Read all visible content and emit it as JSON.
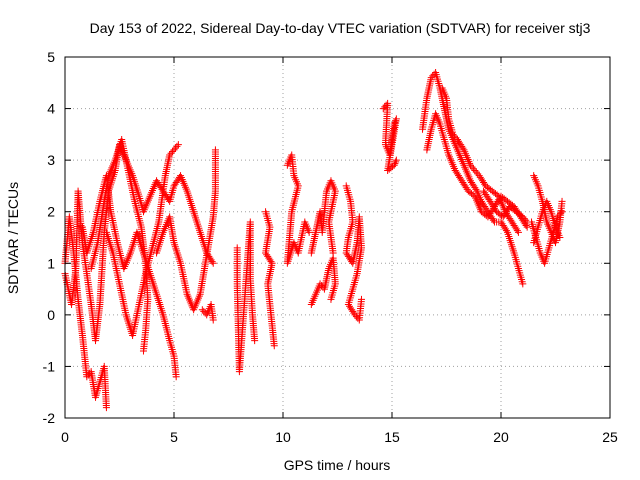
{
  "chart_data": {
    "type": "scatter",
    "title": "Day 153 of 2022, Sidereal Day-to-day VTEC variation (SDTVAR) for receiver stj3",
    "xlabel": "GPS time / hours",
    "ylabel": "SDTVAR / TECUs",
    "xlim": [
      0,
      25
    ],
    "ylim": [
      -2,
      5
    ],
    "xticks": [
      "0",
      "5",
      "10",
      "15",
      "20",
      "25"
    ],
    "yticks": [
      "-2",
      "-1",
      "0",
      "1",
      "2",
      "3",
      "4",
      "5"
    ],
    "grid": true,
    "marker": "+",
    "series": [
      {
        "name": "SDTVAR",
        "color": "#ff0000",
        "tracks": [
          [
            [
              0.0,
              1.0
            ],
            [
              0.2,
              1.9
            ],
            [
              0.4,
              1.2
            ],
            [
              0.6,
              0.3
            ],
            [
              0.8,
              -0.4
            ],
            [
              1.0,
              -1.2
            ],
            [
              1.2,
              -1.1
            ],
            [
              1.4,
              -1.6
            ],
            [
              1.6,
              -1.3
            ],
            [
              1.8,
              -1.0
            ],
            [
              1.9,
              -1.8
            ]
          ],
          [
            [
              0.0,
              0.8
            ],
            [
              0.3,
              0.2
            ],
            [
              0.5,
              0.9
            ],
            [
              0.6,
              2.4
            ],
            [
              0.8,
              1.4
            ],
            [
              1.0,
              0.8
            ],
            [
              1.2,
              0.2
            ],
            [
              1.4,
              -0.5
            ],
            [
              1.6,
              0.2
            ],
            [
              1.8,
              1.6
            ],
            [
              2.0,
              2.4
            ],
            [
              2.3,
              2.8
            ],
            [
              2.5,
              3.3
            ],
            [
              2.8,
              3.0
            ],
            [
              3.1,
              2.7
            ],
            [
              3.4,
              2.3
            ],
            [
              3.6,
              2.0
            ],
            [
              3.9,
              2.3
            ],
            [
              4.2,
              2.6
            ],
            [
              4.5,
              2.4
            ],
            [
              4.8,
              2.2
            ],
            [
              5.0,
              2.5
            ],
            [
              5.3,
              2.7
            ],
            [
              5.6,
              2.4
            ],
            [
              5.9,
              2.0
            ],
            [
              6.2,
              1.6
            ],
            [
              6.5,
              1.2
            ],
            [
              6.8,
              1.0
            ]
          ],
          [
            [
              0.8,
              1.7
            ],
            [
              1.0,
              1.2
            ],
            [
              1.3,
              1.6
            ],
            [
              1.6,
              2.2
            ],
            [
              1.9,
              2.7
            ],
            [
              2.1,
              2.0
            ],
            [
              2.4,
              1.4
            ],
            [
              2.7,
              0.9
            ],
            [
              3.0,
              1.2
            ],
            [
              3.3,
              1.6
            ],
            [
              3.6,
              1.2
            ],
            [
              3.9,
              0.8
            ],
            [
              4.2,
              0.4
            ],
            [
              4.5,
              0.0
            ],
            [
              4.8,
              -0.5
            ],
            [
              5.0,
              -0.8
            ],
            [
              5.1,
              -1.2
            ]
          ],
          [
            [
              1.2,
              0.9
            ],
            [
              1.5,
              1.4
            ],
            [
              1.8,
              2.2
            ],
            [
              2.0,
              2.7
            ],
            [
              2.3,
              3.0
            ],
            [
              2.6,
              3.4
            ],
            [
              2.9,
              2.8
            ],
            [
              3.2,
              2.2
            ],
            [
              3.5,
              1.7
            ],
            [
              3.7,
              1.0
            ],
            [
              3.8,
              0.3
            ],
            [
              3.7,
              -0.3
            ],
            [
              3.6,
              -0.7
            ]
          ],
          [
            [
              1.9,
              1.6
            ],
            [
              2.2,
              1.2
            ],
            [
              2.5,
              0.6
            ],
            [
              2.8,
              0.0
            ],
            [
              3.1,
              -0.4
            ],
            [
              3.4,
              0.2
            ],
            [
              3.7,
              0.8
            ],
            [
              4.0,
              1.3
            ],
            [
              4.3,
              1.8
            ],
            [
              4.6,
              2.7
            ],
            [
              4.8,
              3.1
            ],
            [
              5.0,
              3.2
            ],
            [
              5.2,
              3.3
            ]
          ],
          [
            [
              4.2,
              1.2
            ],
            [
              4.5,
              1.6
            ],
            [
              4.8,
              1.9
            ],
            [
              5.0,
              1.4
            ],
            [
              5.3,
              1.0
            ],
            [
              5.6,
              0.4
            ],
            [
              5.9,
              0.1
            ],
            [
              6.2,
              0.4
            ],
            [
              6.4,
              0.9
            ],
            [
              6.6,
              1.4
            ],
            [
              6.8,
              1.9
            ],
            [
              6.9,
              2.4
            ],
            [
              6.9,
              3.2
            ]
          ],
          [
            [
              6.3,
              0.1
            ],
            [
              6.5,
              0.0
            ],
            [
              6.7,
              0.2
            ],
            [
              6.8,
              -0.1
            ]
          ],
          [
            [
              7.9,
              1.3
            ],
            [
              7.9,
              0.6
            ],
            [
              8.0,
              -1.1
            ],
            [
              8.5,
              1.8
            ],
            [
              8.5,
              0.7
            ],
            [
              8.6,
              0.0
            ],
            [
              8.7,
              -0.5
            ]
          ],
          [
            [
              9.2,
              2.0
            ],
            [
              9.4,
              1.7
            ],
            [
              9.2,
              1.2
            ],
            [
              9.5,
              1.0
            ],
            [
              9.3,
              0.6
            ],
            [
              9.6,
              -0.6
            ]
          ],
          [
            [
              10.2,
              2.9
            ],
            [
              10.4,
              3.1
            ],
            [
              10.5,
              2.7
            ],
            [
              10.7,
              2.5
            ],
            [
              10.4,
              2.0
            ],
            [
              10.2,
              1.0
            ],
            [
              10.5,
              1.4
            ],
            [
              10.7,
              1.2
            ],
            [
              11.0,
              1.8
            ],
            [
              11.2,
              1.6
            ]
          ],
          [
            [
              11.3,
              1.2
            ],
            [
              11.5,
              1.6
            ],
            [
              11.7,
              2.0
            ],
            [
              11.8,
              1.6
            ],
            [
              12.0,
              2.4
            ],
            [
              12.2,
              2.6
            ],
            [
              12.4,
              2.4
            ],
            [
              12.1,
              1.8
            ],
            [
              12.3,
              1.2
            ]
          ],
          [
            [
              11.3,
              0.2
            ],
            [
              11.5,
              0.4
            ],
            [
              11.7,
              0.6
            ],
            [
              11.9,
              0.5
            ],
            [
              12.1,
              0.9
            ],
            [
              12.3,
              1.1
            ],
            [
              12.4,
              0.6
            ],
            [
              12.2,
              0.3
            ]
          ],
          [
            [
              12.9,
              2.5
            ],
            [
              13.1,
              2.2
            ],
            [
              13.2,
              1.8
            ],
            [
              13.0,
              1.5
            ],
            [
              12.9,
              1.2
            ],
            [
              13.2,
              1.0
            ],
            [
              13.4,
              1.4
            ],
            [
              13.5,
              1.9
            ],
            [
              13.6,
              1.3
            ],
            [
              13.4,
              0.8
            ],
            [
              13.2,
              0.5
            ],
            [
              13.0,
              0.2
            ],
            [
              13.3,
              0.0
            ],
            [
              13.5,
              -0.1
            ],
            [
              13.6,
              0.3
            ]
          ],
          [
            [
              14.6,
              4.0
            ],
            [
              14.8,
              4.1
            ],
            [
              14.7,
              3.3
            ],
            [
              14.9,
              3.1
            ],
            [
              15.0,
              3.4
            ],
            [
              15.1,
              3.7
            ],
            [
              15.2,
              3.8
            ],
            [
              14.8,
              2.8
            ],
            [
              15.1,
              2.9
            ],
            [
              15.2,
              3.0
            ]
          ],
          [
            [
              16.4,
              3.6
            ],
            [
              16.6,
              4.2
            ],
            [
              16.8,
              4.6
            ],
            [
              17.0,
              4.7
            ],
            [
              17.2,
              4.4
            ],
            [
              17.4,
              4.0
            ],
            [
              17.6,
              3.6
            ],
            [
              17.8,
              3.4
            ],
            [
              18.0,
              3.2
            ],
            [
              18.3,
              2.9
            ],
            [
              18.6,
              2.6
            ],
            [
              18.9,
              2.4
            ],
            [
              19.1,
              2.2
            ],
            [
              19.4,
              2.0
            ],
            [
              19.7,
              1.8
            ],
            [
              20.0,
              1.8
            ],
            [
              20.3,
              1.6
            ],
            [
              20.6,
              1.2
            ],
            [
              20.8,
              0.9
            ],
            [
              21.0,
              0.6
            ]
          ],
          [
            [
              16.6,
              3.2
            ],
            [
              16.8,
              3.6
            ],
            [
              17.0,
              3.9
            ],
            [
              17.2,
              3.7
            ],
            [
              17.4,
              3.4
            ],
            [
              17.6,
              3.1
            ],
            [
              17.9,
              2.8
            ],
            [
              18.2,
              2.6
            ],
            [
              18.5,
              2.4
            ],
            [
              18.8,
              2.3
            ],
            [
              19.1,
              2.0
            ],
            [
              19.4,
              1.9
            ],
            [
              19.7,
              2.1
            ],
            [
              20.0,
              2.3
            ],
            [
              20.3,
              2.2
            ],
            [
              20.6,
              2.1
            ],
            [
              20.9,
              1.9
            ],
            [
              21.2,
              1.7
            ]
          ],
          [
            [
              17.3,
              4.4
            ],
            [
              17.5,
              4.2
            ],
            [
              17.6,
              3.8
            ],
            [
              17.8,
              3.5
            ],
            [
              18.0,
              3.4
            ],
            [
              18.3,
              3.2
            ],
            [
              18.6,
              2.9
            ],
            [
              19.0,
              2.7
            ],
            [
              19.3,
              2.5
            ],
            [
              19.6,
              2.4
            ],
            [
              19.9,
              2.3
            ],
            [
              20.2,
              2.0
            ],
            [
              20.5,
              1.8
            ],
            [
              20.8,
              1.6
            ]
          ],
          [
            [
              19.2,
              2.4
            ],
            [
              19.5,
              2.2
            ],
            [
              19.8,
              2.0
            ],
            [
              20.1,
              1.9
            ],
            [
              20.4,
              2.1
            ],
            [
              20.7,
              2.0
            ],
            [
              21.0,
              1.9
            ],
            [
              21.2,
              1.8
            ]
          ],
          [
            [
              21.5,
              2.7
            ],
            [
              21.7,
              2.5
            ],
            [
              21.9,
              2.2
            ],
            [
              22.1,
              1.8
            ],
            [
              22.3,
              1.6
            ],
            [
              22.5,
              1.4
            ],
            [
              22.7,
              1.8
            ],
            [
              22.8,
              2.2
            ]
          ],
          [
            [
              21.4,
              1.8
            ],
            [
              21.6,
              1.5
            ],
            [
              21.8,
              1.2
            ],
            [
              22.0,
              1.0
            ],
            [
              22.2,
              1.3
            ],
            [
              22.4,
              1.6
            ],
            [
              22.6,
              1.9
            ],
            [
              22.8,
              2.0
            ]
          ],
          [
            [
              21.5,
              1.4
            ],
            [
              21.7,
              1.7
            ],
            [
              21.9,
              2.0
            ],
            [
              22.1,
              2.2
            ],
            [
              22.3,
              2.0
            ],
            [
              22.5,
              1.7
            ],
            [
              22.7,
              1.5
            ]
          ]
        ]
      }
    ]
  }
}
